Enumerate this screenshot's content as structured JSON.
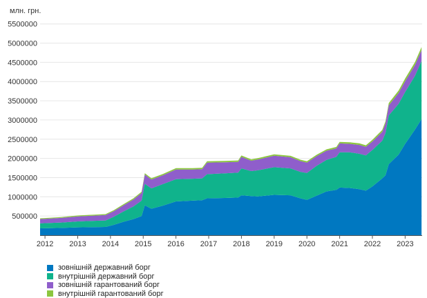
{
  "chart_data": {
    "type": "area",
    "stacked": true,
    "title": "",
    "ylabel": "млн. грн.",
    "xlabel": "",
    "ylim": [
      0,
      5800000
    ],
    "xlim": [
      2011.85,
      2023.52
    ],
    "y_ticks": [
      500000,
      1000000,
      1500000,
      2000000,
      2500000,
      3000000,
      3500000,
      4000000,
      4500000,
      5000000,
      5500000
    ],
    "y_tick_labels": [
      "500000",
      "1000000",
      "1500000",
      "2000000",
      "2500000",
      "3000000",
      "3500000",
      "4000000",
      "4500000",
      "5000000",
      "5500000"
    ],
    "x_ticks": [
      2012,
      2013,
      2014,
      2015,
      2016,
      2017,
      2018,
      2019,
      2020,
      2021,
      2022,
      2023
    ],
    "x_tick_labels": [
      "2012",
      "2013",
      "2014",
      "2015",
      "2016",
      "2017",
      "2018",
      "2019",
      "2020",
      "2021",
      "2022",
      "2023"
    ],
    "grid": "horizontal",
    "legend_position": "bottom-left",
    "x": [
      2011.85,
      2012.5,
      2013.0,
      2013.5,
      2013.85,
      2014.1,
      2014.4,
      2014.7,
      2014.95,
      2015.05,
      2015.25,
      2015.6,
      2016.0,
      2016.5,
      2016.8,
      2016.95,
      2017.5,
      2017.9,
      2018.0,
      2018.3,
      2018.5,
      2019.0,
      2019.5,
      2019.8,
      2020.0,
      2020.3,
      2020.6,
      2020.9,
      2021.0,
      2021.3,
      2021.6,
      2021.8,
      2022.0,
      2022.3,
      2022.4,
      2022.5,
      2022.8,
      2023.0,
      2023.3,
      2023.5
    ],
    "series": [
      {
        "name": "зовнішній державний борг",
        "color": "#0078c1",
        "values": [
          180000,
          190000,
          205000,
          210000,
          215000,
          270000,
          350000,
          420000,
          500000,
          780000,
          690000,
          770000,
          880000,
          900000,
          910000,
          960000,
          970000,
          980000,
          1040000,
          1020000,
          1010000,
          1050000,
          1040000,
          960000,
          920000,
          1030000,
          1140000,
          1180000,
          1240000,
          1230000,
          1200000,
          1160000,
          1270000,
          1480000,
          1560000,
          1850000,
          2100000,
          2380000,
          2750000,
          3020000
        ]
      },
      {
        "name": "внутрішній державний борг",
        "color": "#10b38c",
        "values": [
          130000,
          140000,
          155000,
          165000,
          170000,
          210000,
          270000,
          330000,
          400000,
          560000,
          530000,
          560000,
          580000,
          570000,
          570000,
          630000,
          640000,
          650000,
          700000,
          650000,
          680000,
          720000,
          700000,
          690000,
          700000,
          780000,
          820000,
          860000,
          920000,
          930000,
          920000,
          920000,
          950000,
          980000,
          1100000,
          1270000,
          1320000,
          1350000,
          1400000,
          1520000
        ]
      },
      {
        "name": "зовнішній гарантований борг",
        "color": "#8f5ecb",
        "values": [
          110000,
          120000,
          130000,
          135000,
          140000,
          145000,
          160000,
          180000,
          200000,
          240000,
          230000,
          230000,
          250000,
          240000,
          240000,
          300000,
          290000,
          280000,
          300000,
          270000,
          280000,
          300000,
          290000,
          280000,
          270000,
          250000,
          240000,
          220000,
          230000,
          220000,
          230000,
          220000,
          220000,
          230000,
          250000,
          260000,
          280000,
          280000,
          280000,
          280000
        ]
      },
      {
        "name": "внутрішній гарантований борг",
        "color": "#8cc63f",
        "values": [
          20000,
          22000,
          24000,
          25000,
          25000,
          26000,
          28000,
          30000,
          32000,
          35000,
          34000,
          35000,
          36000,
          36000,
          36000,
          36000,
          36000,
          36000,
          36000,
          36000,
          36000,
          36000,
          36000,
          36000,
          36000,
          36000,
          36000,
          38000,
          40000,
          40000,
          42000,
          42000,
          45000,
          50000,
          55000,
          60000,
          65000,
          70000,
          75000,
          80000
        ]
      }
    ]
  }
}
